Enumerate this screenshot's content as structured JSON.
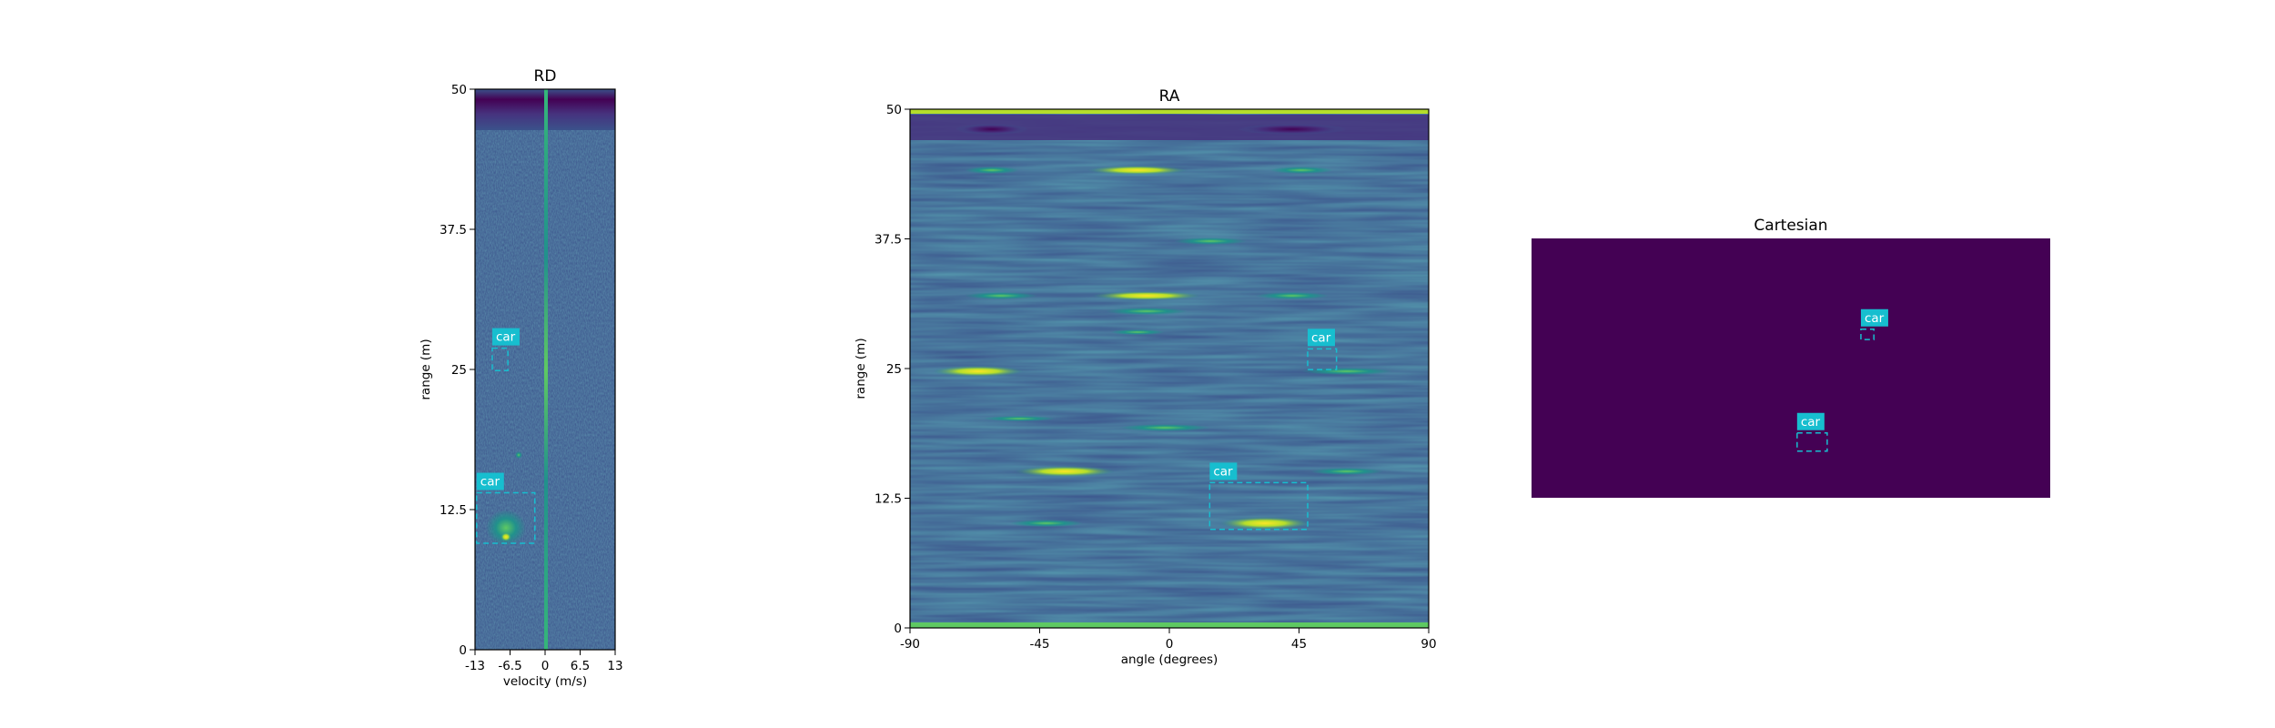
{
  "chart_data": [
    {
      "type": "heatmap",
      "title": "RD",
      "xlabel": "velocity (m/s)",
      "ylabel": "range (m)",
      "xlim": [
        -13,
        13
      ],
      "ylim": [
        0,
        50
      ],
      "x_ticks": [
        "-13",
        "-6.5",
        "0",
        "6.5",
        "13"
      ],
      "x_tick_values": [
        -13,
        -6.5,
        0,
        6.5,
        13
      ],
      "y_ticks": [
        "0",
        "12.5",
        "25",
        "37.5",
        "50"
      ],
      "y_tick_values": [
        0,
        12.5,
        25,
        37.5,
        50
      ],
      "colormap": "viridis",
      "grid": false,
      "boxes": [
        {
          "label": "car",
          "x0": -9.8,
          "x1": -6.9,
          "y0": 24.9,
          "y1": 26.9
        },
        {
          "label": "car",
          "x0": -12.7,
          "x1": -1.9,
          "y0": 9.5,
          "y1": 14.0
        }
      ]
    },
    {
      "type": "heatmap",
      "title": "RA",
      "xlabel": "angle (degrees)",
      "ylabel": "range (m)",
      "xlim": [
        -90,
        90
      ],
      "ylim": [
        0,
        50
      ],
      "x_ticks": [
        "-90",
        "-45",
        "0",
        "45",
        "90"
      ],
      "x_tick_values": [
        -90,
        -45,
        0,
        45,
        90
      ],
      "y_ticks": [
        "0",
        "12.5",
        "25",
        "37.5",
        "50"
      ],
      "y_tick_values": [
        0,
        12.5,
        25,
        37.5,
        50
      ],
      "colormap": "viridis",
      "grid": false,
      "boxes": [
        {
          "label": "car",
          "x0": 48,
          "x1": 58,
          "y0": 24.9,
          "y1": 26.9
        },
        {
          "label": "car",
          "x0": 14,
          "x1": 48,
          "y0": 9.5,
          "y1": 14.0
        }
      ]
    },
    {
      "type": "heatmap",
      "title": "Cartesian",
      "axes": "off",
      "background_color": "#440154",
      "boxes": [
        {
          "label": "car",
          "x0": 0.635,
          "x1": 0.66,
          "y0": 0.61,
          "y1": 0.65
        },
        {
          "label": "car",
          "x0": 0.512,
          "x1": 0.57,
          "y0": 0.18,
          "y1": 0.25
        }
      ]
    }
  ],
  "colors": {
    "box": "#17becf",
    "label_bg": "#17becf",
    "label_text": "#ffffff",
    "background_dark": "#440154",
    "background_mid": "#3b528b"
  }
}
